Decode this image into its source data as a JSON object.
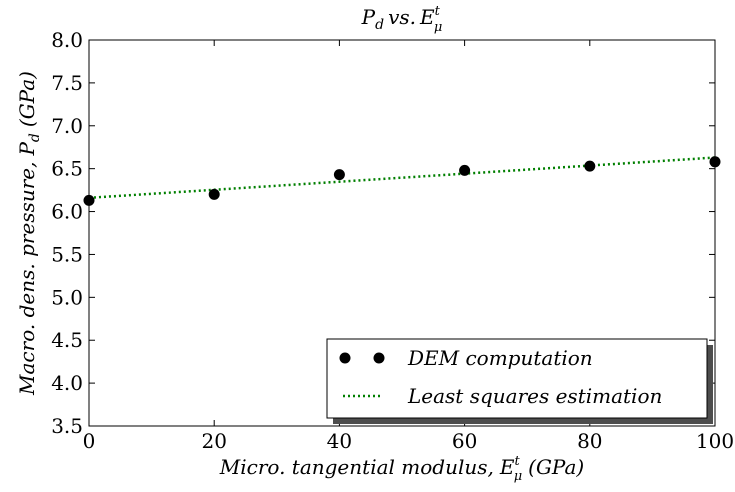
{
  "chart_data": {
    "type": "scatter",
    "title": "P_d vs. E_μ^t",
    "title_parts": {
      "p": "P",
      "p_sub": "d",
      "vs": "vs.",
      "e": "E",
      "e_sup": "t",
      "e_sub": "μ"
    },
    "xlabel": "Micro. tangential modulus, E_μ^t (GPa)",
    "xlabel_parts": {
      "pre": "Micro. tangential modulus,",
      "sym": "E",
      "sup": "t",
      "sub": "μ",
      "unit": "(GPa)"
    },
    "ylabel": "Macro. dens. pressure, P_d (GPa)",
    "ylabel_parts": {
      "pre": "Macro. dens. pressure,",
      "sym": "P",
      "sub": "d",
      "unit": "(GPa)"
    },
    "xlim": [
      0,
      100
    ],
    "ylim": [
      3.5,
      8.0
    ],
    "xticks": [
      "0",
      "20",
      "40",
      "60",
      "80",
      "100"
    ],
    "yticks": [
      "3.5",
      "4.0",
      "4.5",
      "5.0",
      "5.5",
      "6.0",
      "6.5",
      "7.0",
      "7.5",
      "8.0"
    ],
    "grid": false,
    "legend_position": "bottom-right",
    "series": [
      {
        "name": "DEM computation",
        "kind": "markers",
        "color": "#000000",
        "x": [
          0,
          20,
          40,
          60,
          80,
          100
        ],
        "y": [
          6.13,
          6.2,
          6.43,
          6.48,
          6.53,
          6.58
        ]
      },
      {
        "name": "Least squares estimation",
        "kind": "dotted-line",
        "color": "#007f00",
        "x": [
          0,
          100
        ],
        "y": [
          6.16,
          6.63
        ]
      }
    ]
  }
}
